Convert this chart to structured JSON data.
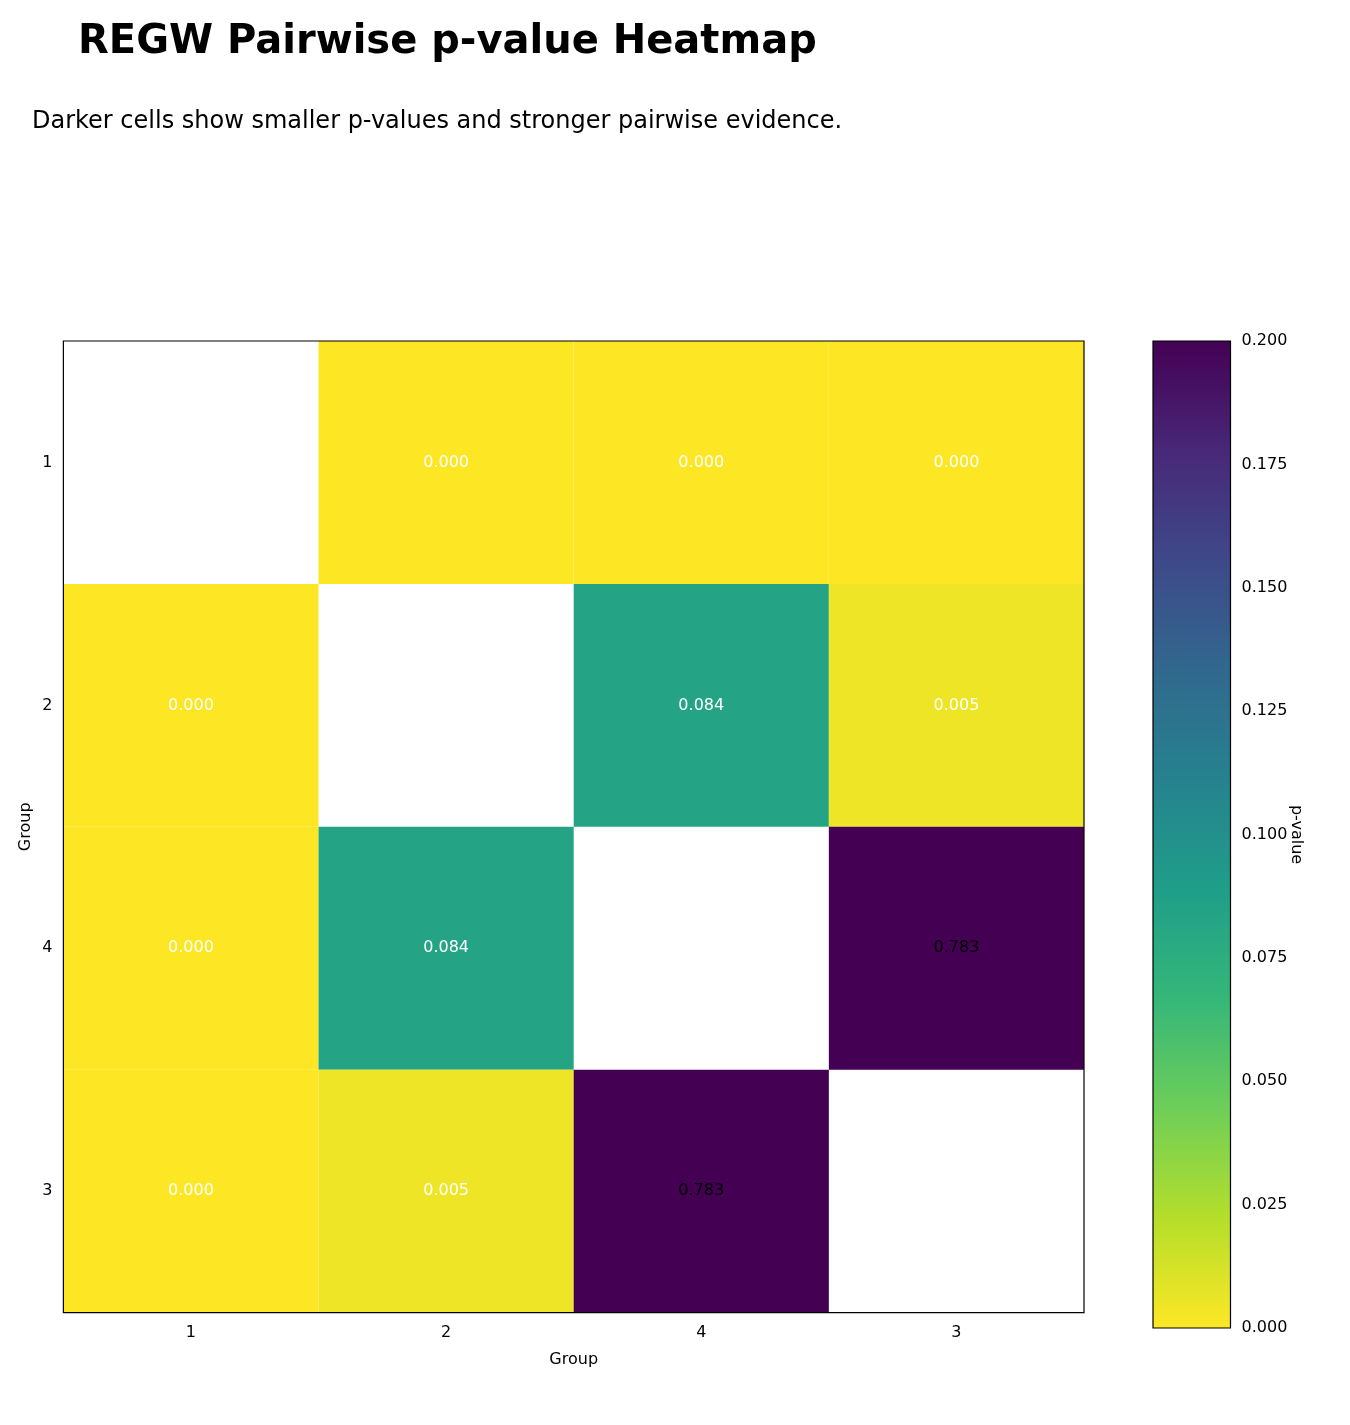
{
  "chart_data": {
    "type": "heatmap",
    "title": "REGW Pairwise p-value Heatmap",
    "subtitle": "Darker cells show smaller p-values and stronger pairwise evidence.",
    "xlabel": "Group",
    "ylabel": "Group",
    "clabel": "p-value",
    "categories": [
      "1",
      "2",
      "4",
      "3"
    ],
    "y_categories": [
      "1",
      "2",
      "4",
      "3"
    ],
    "cells": [
      [
        null,
        0,
        0,
        0
      ],
      [
        0,
        null,
        0.084,
        0.005
      ],
      [
        0,
        0.084,
        null,
        0.783
      ],
      [
        0,
        0.005,
        0.783,
        null
      ]
    ],
    "cell_labels": [
      [
        null,
        "0.000",
        "0.000",
        "0.000"
      ],
      [
        "0.000",
        null,
        "0.084",
        "0.005"
      ],
      [
        "0.000",
        "0.084",
        null,
        "0.783"
      ],
      [
        "0.000",
        "0.005",
        "0.783",
        null
      ]
    ],
    "clim": [
      0,
      0.2
    ],
    "cticks": [
      {
        "value": 0,
        "label": "0.000"
      },
      {
        "value": 0.025,
        "label": "0.025"
      },
      {
        "value": 0.05,
        "label": "0.050"
      },
      {
        "value": 0.075,
        "label": "0.075"
      },
      {
        "value": 0.1,
        "label": "0.100"
      },
      {
        "value": 0.125,
        "label": "0.125"
      },
      {
        "value": 0.15,
        "label": "0.150"
      },
      {
        "value": 0.175,
        "label": "0.175"
      },
      {
        "value": 0.2,
        "label": "0.200"
      }
    ]
  }
}
